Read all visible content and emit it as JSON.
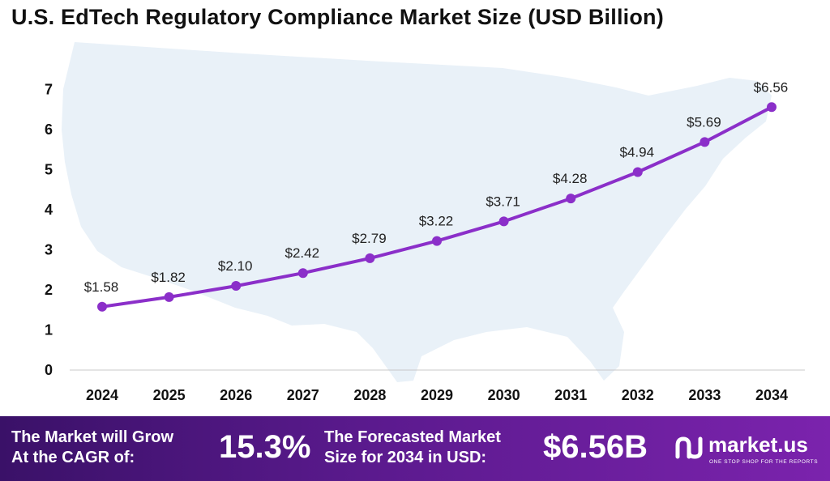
{
  "chart_data": {
    "type": "line",
    "title": "U.S. EdTech Regulatory Compliance Market Size (USD Billion)",
    "categories": [
      "2024",
      "2025",
      "2026",
      "2027",
      "2028",
      "2029",
      "2030",
      "2031",
      "2032",
      "2033",
      "2034"
    ],
    "values": [
      1.58,
      1.82,
      2.1,
      2.42,
      2.79,
      3.22,
      3.71,
      4.28,
      4.94,
      5.69,
      6.56
    ],
    "data_labels": [
      "$1.58",
      "$1.82",
      "$2.10",
      "$2.42",
      "$2.79",
      "$3.22",
      "$3.71",
      "$4.28",
      "$4.94",
      "$5.69",
      "$6.56"
    ],
    "yticks": [
      0,
      1,
      2,
      3,
      4,
      5,
      6,
      7
    ],
    "ylim": [
      0,
      7
    ],
    "xlabel": "",
    "ylabel": "",
    "grid": false,
    "series_color": "#8b2fc9",
    "background_map_color": "#e8f0f7"
  },
  "footer": {
    "cagr_label_line1": "The Market will Grow",
    "cagr_label_line2": "At the CAGR of:",
    "cagr_value": "15.3%",
    "forecast_label_line1": "The Forecasted Market",
    "forecast_label_line2": "Size for 2034 in USD:",
    "forecast_value": "$6.56B"
  },
  "logo": {
    "name": "market.us",
    "tagline": "ONE STOP SHOP FOR THE REPORTS"
  }
}
